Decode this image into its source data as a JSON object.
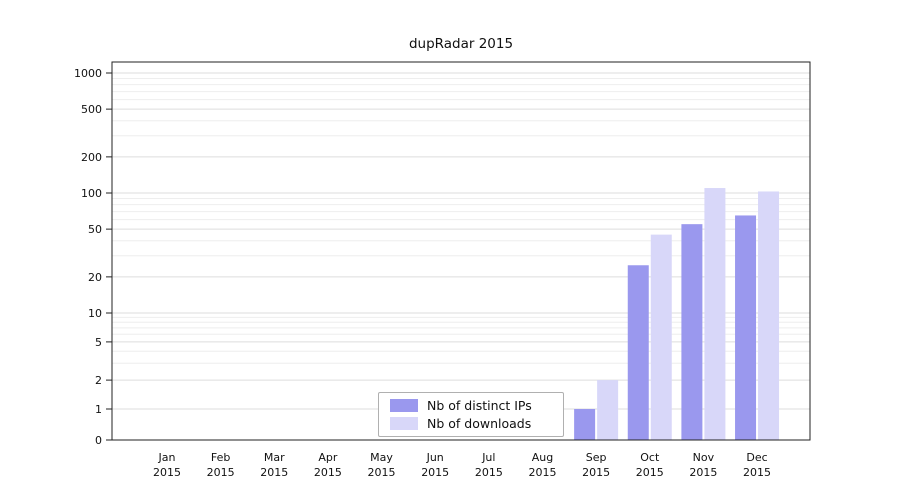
{
  "chart_data": {
    "type": "bar",
    "title": "dupRadar 2015",
    "categories": [
      "Jan",
      "Feb",
      "Mar",
      "Apr",
      "May",
      "Jun",
      "Jul",
      "Aug",
      "Sep",
      "Oct",
      "Nov",
      "Dec"
    ],
    "year": "2015",
    "series": [
      {
        "name": "Nb of distinct IPs",
        "color": "#9a98ee",
        "values": [
          0,
          0,
          0,
          0,
          0,
          0,
          0,
          0,
          1,
          25,
          55,
          65
        ]
      },
      {
        "name": "Nb of downloads",
        "color": "#d8d7f9",
        "values": [
          0,
          0,
          0,
          0,
          0,
          0,
          0,
          0,
          2,
          45,
          110,
          103
        ]
      }
    ],
    "yticks": [
      0,
      1,
      2,
      5,
      10,
      20,
      50,
      100,
      200,
      500,
      1000
    ],
    "ylabel": "",
    "xlabel": "",
    "yscale": "symlog",
    "ylim": [
      0,
      1000
    ],
    "grid": "horizontal",
    "legend_position": "bottom-center-inside"
  }
}
